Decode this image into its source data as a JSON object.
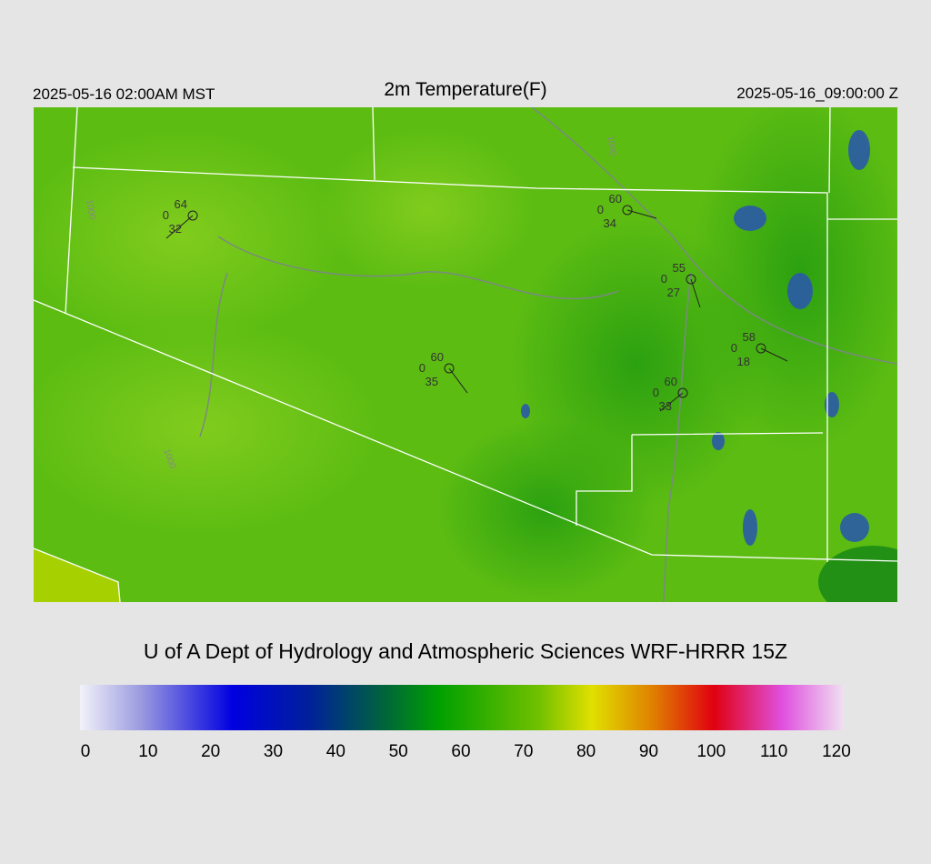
{
  "header": {
    "title": "2m Temperature(F)",
    "valid_local": "2025-05-16 02:00AM MST",
    "valid_utc": "2025-05-16_09:00:00 Z"
  },
  "stations": [
    {
      "temperature": 64,
      "value": 0,
      "dewpoint": 32
    },
    {
      "temperature": 60,
      "value": 0,
      "dewpoint": 34
    },
    {
      "temperature": 55,
      "value": 0,
      "dewpoint": 27
    },
    {
      "temperature": 58,
      "value": 0,
      "dewpoint": 18
    },
    {
      "temperature": 60,
      "value": 0,
      "dewpoint": 35
    },
    {
      "temperature": 60,
      "value": 0,
      "dewpoint": 33
    }
  ],
  "contour_labels": [
    "1000",
    "1000",
    "1000"
  ],
  "credit": "U of A Dept of Hydrology and Atmospheric Sciences WRF-HRRR 15Z",
  "colorbar": {
    "ticks": [
      0,
      10,
      20,
      30,
      40,
      50,
      60,
      70,
      80,
      90,
      100,
      110,
      120
    ]
  }
}
